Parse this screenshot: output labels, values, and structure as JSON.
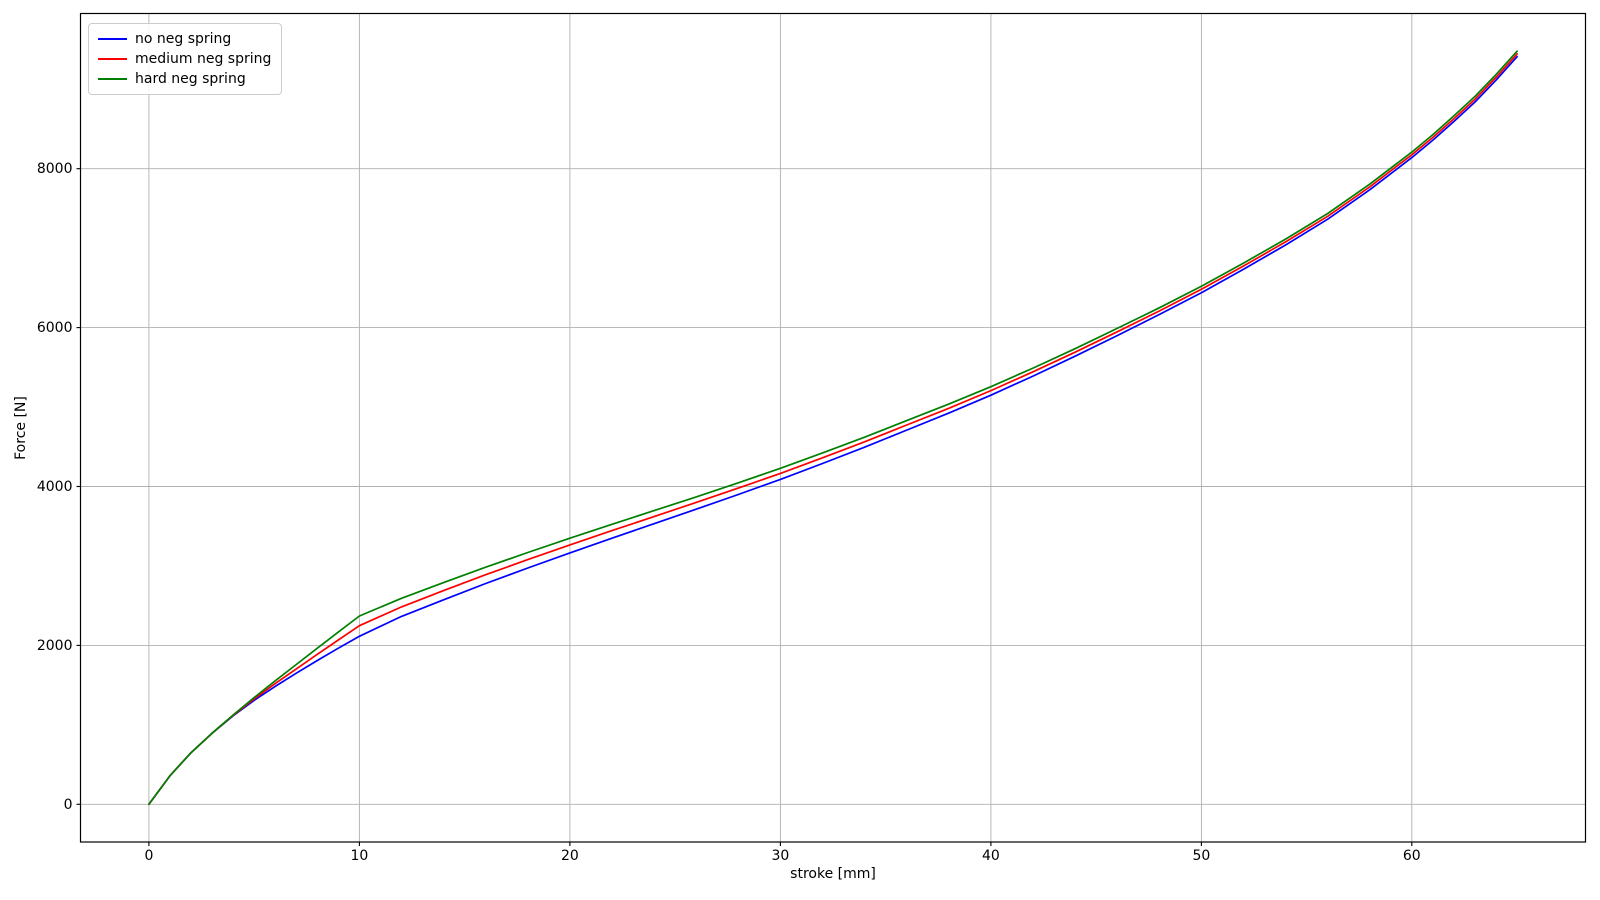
{
  "figure": {
    "background": "#ffffff",
    "grid_color": "#b0b0b0",
    "spine_color": "#000000",
    "text_color": "#000000"
  },
  "chart_data": {
    "type": "line",
    "title": "",
    "xlabel": "stroke [mm]",
    "ylabel": "Force [N]",
    "xlim": [
      -3.25,
      68.25
    ],
    "ylim": [
      -474,
      9954
    ],
    "xticks": [
      0,
      10,
      20,
      30,
      40,
      50,
      60
    ],
    "yticks": [
      0,
      2000,
      4000,
      6000,
      8000
    ],
    "grid": true,
    "legend_position": "upper left",
    "x": [
      0,
      1,
      2,
      3,
      4,
      5,
      6,
      7,
      8,
      9,
      10,
      12,
      14,
      16,
      18,
      20,
      22,
      24,
      26,
      28,
      30,
      32,
      34,
      36,
      38,
      40,
      42,
      44,
      46,
      48,
      50,
      52,
      54,
      56,
      58,
      60,
      61,
      62,
      63,
      64,
      65
    ],
    "series": [
      {
        "name": "no neg spring",
        "color": "#0000ff",
        "values": [
          0,
          360,
          650,
          895,
          1115,
          1310,
          1485,
          1650,
          1810,
          1965,
          2115,
          2365,
          2575,
          2780,
          2975,
          3165,
          3350,
          3532,
          3715,
          3900,
          4090,
          4290,
          4495,
          4710,
          4925,
          5150,
          5390,
          5640,
          5900,
          6165,
          6440,
          6735,
          7040,
          7365,
          7735,
          8140,
          8360,
          8595,
          8840,
          9115,
          9410
        ]
      },
      {
        "name": "medium neg spring",
        "color": "#ff0000",
        "values": [
          0,
          360,
          650,
          895,
          1120,
          1328,
          1520,
          1705,
          1888,
          2068,
          2248,
          2485,
          2690,
          2890,
          3080,
          3265,
          3445,
          3622,
          3800,
          3980,
          4165,
          4362,
          4563,
          4774,
          4985,
          5207,
          5444,
          5691,
          5948,
          6210,
          6483,
          6776,
          7079,
          7402,
          7771,
          8175,
          8395,
          8630,
          8875,
          9150,
          9445
        ]
      },
      {
        "name": "hard neg spring",
        "color": "#008000",
        "values": [
          0,
          360,
          650,
          895,
          1125,
          1345,
          1555,
          1760,
          1965,
          2168,
          2370,
          2593,
          2791,
          2985,
          3170,
          3350,
          3525,
          3697,
          3870,
          4047,
          4230,
          4423,
          4621,
          4830,
          5038,
          5257,
          5491,
          5735,
          5990,
          6250,
          6520,
          6812,
          7114,
          7437,
          7806,
          8210,
          8430,
          8665,
          8910,
          9185,
          9480
        ]
      }
    ]
  }
}
